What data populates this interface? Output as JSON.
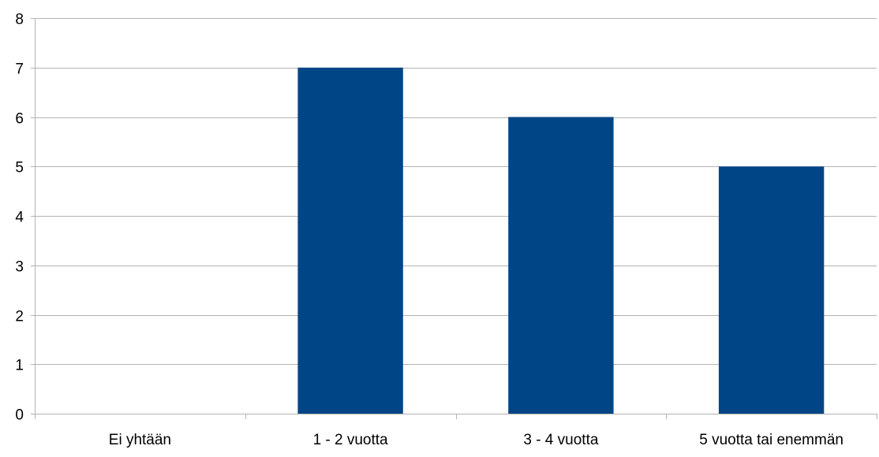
{
  "chart_data": {
    "type": "bar",
    "title": "",
    "xlabel": "",
    "ylabel": "",
    "categories": [
      "Ei yhtään",
      "1 - 2 vuotta",
      "3 - 4 vuotta",
      "5 vuotta tai enemmän"
    ],
    "values": [
      0,
      7,
      6,
      5
    ],
    "ylim": [
      0,
      8
    ],
    "yticks": [
      "0",
      "1",
      "2",
      "3",
      "4",
      "5",
      "6",
      "7",
      "8"
    ],
    "grid": true,
    "legend": "none",
    "colors": {
      "bar": "#004586",
      "grid": "#b3b3b3",
      "axis": "#b3b3b3"
    }
  }
}
